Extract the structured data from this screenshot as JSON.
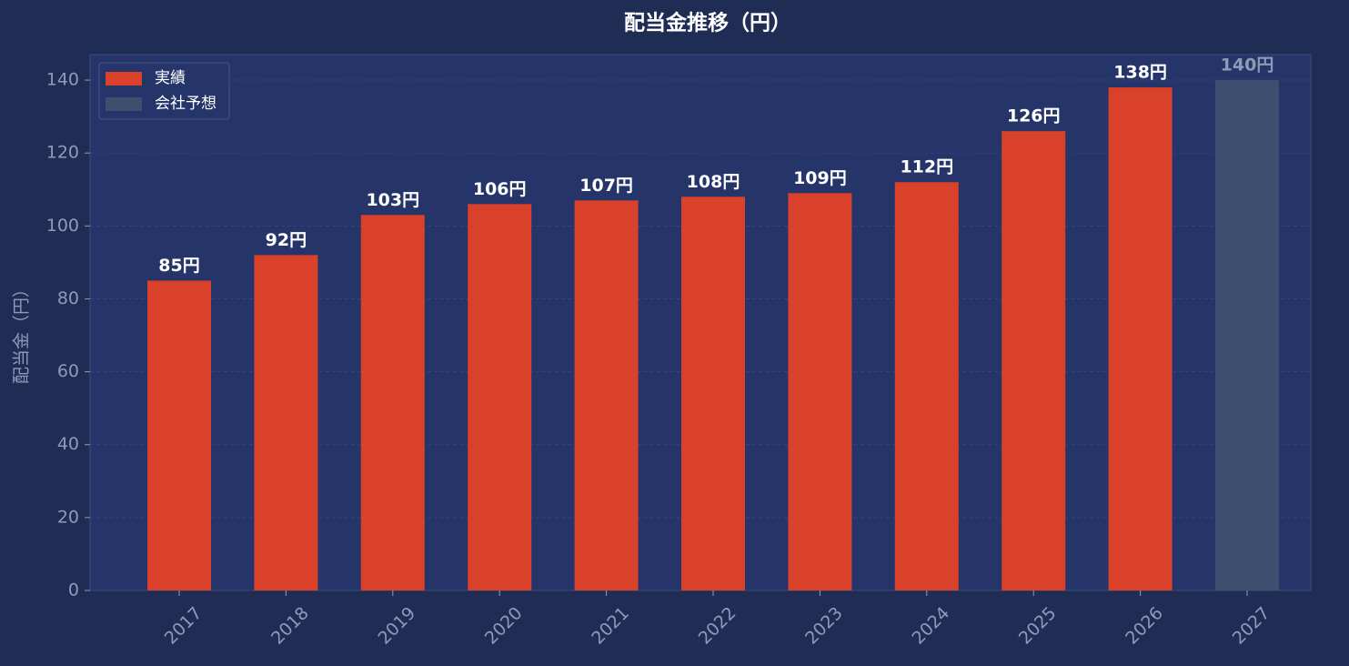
{
  "chart_data": {
    "type": "bar",
    "title": "配当金推移（円）",
    "y_label": "配当金（円）",
    "categories": [
      "2017",
      "2018",
      "2019",
      "2020",
      "2021",
      "2022",
      "2023",
      "2024",
      "2025",
      "2026",
      "2027"
    ],
    "series": [
      {
        "name": "実績",
        "color": "#d9412b",
        "label_color": "#ffffff",
        "values": [
          85,
          92,
          103,
          106,
          107,
          108,
          109,
          112,
          126,
          138,
          null
        ],
        "value_labels": [
          "85円",
          "92円",
          "103円",
          "106円",
          "107円",
          "108円",
          "109円",
          "112円",
          "126円",
          "138円",
          null
        ]
      },
      {
        "name": "会社予想",
        "color": "#3d4f6e",
        "label_color": "#8e9bb5",
        "values": [
          null,
          null,
          null,
          null,
          null,
          null,
          null,
          null,
          null,
          null,
          140
        ],
        "value_labels": [
          null,
          null,
          null,
          null,
          null,
          null,
          null,
          null,
          null,
          null,
          "140円"
        ]
      }
    ],
    "ylim": [
      0,
      147
    ],
    "yticks": [
      0,
      20,
      40,
      60,
      80,
      100,
      120,
      140
    ],
    "grid": true,
    "legend": "upper left"
  }
}
